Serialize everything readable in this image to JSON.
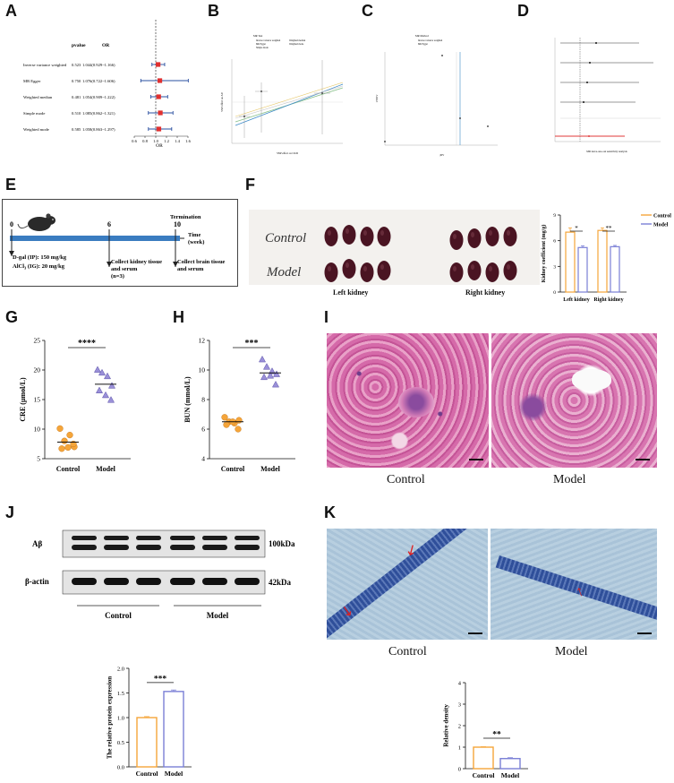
{
  "panels": {
    "A": "A",
    "B": "B",
    "C": "C",
    "D": "D",
    "E": "E",
    "F": "F",
    "G": "G",
    "H": "H",
    "I": "I",
    "J": "J",
    "K": "K"
  },
  "forest_A": {
    "head_pvalue": "pvalue",
    "head_or": "OR",
    "axis_label": "OR",
    "ticks": [
      "0.6",
      "0.8",
      "1.0",
      "1.2",
      "1.4",
      "1.6"
    ],
    "tick_values": [
      0.6,
      0.8,
      1.0,
      1.2,
      1.4,
      1.6
    ],
    "rows": [
      {
        "method": "Inverse variance weighted",
        "pvalue": "0.523",
        "or_text": "1.044(0.929~1.166)",
        "or": 1.044,
        "lo": 0.929,
        "hi": 1.166
      },
      {
        "method": "MR Egger",
        "pvalue": "0.750",
        "or_text": "1.076(0.722~1.606)",
        "or": 1.076,
        "lo": 0.722,
        "hi": 1.606
      },
      {
        "method": "Weighted median",
        "pvalue": "0.481",
        "or_text": "1.054(0.909~1.222)",
        "or": 1.054,
        "lo": 0.909,
        "hi": 1.222
      },
      {
        "method": "Simple mode",
        "pvalue": "0.510",
        "or_text": "1.085(0.862~1.321)",
        "or": 1.085,
        "lo": 0.862,
        "hi": 1.321
      },
      {
        "method": "Weighted mode",
        "pvalue": "0.585",
        "or_text": "1.058(0.863~1.297)",
        "or": 1.058,
        "lo": 0.863,
        "hi": 1.297
      }
    ]
  },
  "scatter_B": {
    "legend_title": "MR Test",
    "legend": [
      "Inverse variance weighted",
      "MR Egger",
      "Simple mode",
      "Weighted median",
      "Weighted mode"
    ],
    "xlabel": "SNP effect on CKD",
    "ylabel": "SNP effect on AD"
  },
  "funnel_C": {
    "legend_title": "MR Method",
    "legend": [
      "Inverse variance weighted",
      "MR Egger"
    ],
    "xlabel": "βIV",
    "ylabel": "1/SEIV"
  },
  "loo_D": {
    "xlabel": "MR leave-one-out sensitivity analysis"
  },
  "timeline_E": {
    "t0": "0",
    "t6": "6",
    "t10": "10",
    "termination": "Termination",
    "time": "Time",
    "week": "(week)",
    "dose1": "D-gal (IP): 150 mg/kg",
    "dose2_pre": "AlCl",
    "dose2_sub": "3",
    "dose2_post": " (IG): 20 mg/kg",
    "collect1_l1": "Collect kidney tissue",
    "collect1_l2": "and serum",
    "collect1_l3": "(n=3)",
    "collect2_l1": "Collect brain tissue",
    "collect2_l2": "and serum"
  },
  "photo_F": {
    "hand_control": "Control",
    "hand_model": "Model",
    "left_label": "Left kidney",
    "right_label": "Right kidney"
  },
  "bar_F": {
    "ylabel": "Kidney coefficient (mg/g)",
    "yticks": [
      "0",
      "3",
      "6",
      "9"
    ],
    "ylim": [
      0,
      9
    ],
    "categories": [
      "Left kidney",
      "Right kidney"
    ],
    "series": [
      {
        "name": "Control",
        "values": [
          7.0,
          7.2
        ],
        "err": [
          0.5,
          0.3
        ],
        "color": "#F5A53A"
      },
      {
        "name": "Model",
        "values": [
          5.2,
          5.3
        ],
        "err": [
          0.2,
          0.15
        ],
        "color": "#7A7FD6"
      }
    ],
    "sig": [
      "*",
      "**"
    ]
  },
  "scatter_G": {
    "ylabel": "CRE (μmol/L)",
    "yticks": [
      "5",
      "10",
      "15",
      "20",
      "25"
    ],
    "ylim": [
      5,
      25
    ],
    "categories": [
      "Control",
      "Model"
    ],
    "control": [
      10.1,
      8.0,
      9.0,
      7.0,
      6.7,
      6.9,
      7.5
    ],
    "model": [
      20.0,
      19.5,
      18.9,
      17.3,
      16.5,
      15.7,
      14.9
    ],
    "mean": [
      7.8,
      17.6
    ],
    "sig": "****"
  },
  "scatter_H": {
    "ylabel": "BUN (mmol/L)",
    "yticks": [
      "4",
      "6",
      "8",
      "10",
      "12"
    ],
    "ylim": [
      4,
      12
    ],
    "categories": [
      "Control",
      "Model"
    ],
    "control": [
      6.8,
      6.5,
      6.4,
      6.6,
      6.3,
      6.5,
      6.0
    ],
    "model": [
      10.7,
      10.2,
      9.9,
      9.7,
      9.5,
      9.6,
      9.0
    ],
    "mean": [
      6.5,
      9.8
    ],
    "sig": "***"
  },
  "histo_I": {
    "left": "Control",
    "right": "Model"
  },
  "blot_J": {
    "row1": "Aβ",
    "row1_kda": "100kDa",
    "row2": "β-actin",
    "row2_kda": "42kDa",
    "group1": "Control",
    "group2": "Model"
  },
  "bar_J": {
    "ylabel": "The relative protein expression",
    "yticks": [
      "0.0",
      "0.5",
      "1.0",
      "1.5",
      "2.0"
    ],
    "ylim": [
      0,
      2.0
    ],
    "categories": [
      "Control",
      "Model"
    ],
    "values": [
      1.0,
      1.53
    ],
    "err": [
      0.02,
      0.03
    ],
    "colors": [
      "#F5A53A",
      "#7A7FD6"
    ],
    "sig": "***"
  },
  "histo_K": {
    "left": "Control",
    "right": "Model"
  },
  "bar_K": {
    "ylabel": "Relative density",
    "yticks": [
      "0",
      "1",
      "2",
      "3",
      "4"
    ],
    "ylim": [
      0,
      4
    ],
    "categories": [
      "Control",
      "Model"
    ],
    "values": [
      1.0,
      0.47
    ],
    "err": [
      0.02,
      0.04
    ],
    "colors": [
      "#F5A53A",
      "#7A7FD6"
    ],
    "sig": "**"
  }
}
